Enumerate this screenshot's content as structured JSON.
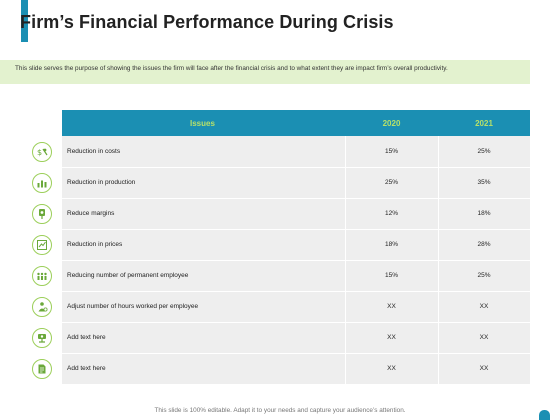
{
  "slide": {
    "title": "Firm’s Financial Performance During Crisis",
    "description": "This slide serves the purpose of showing the issues the firm will face after the financial crisis and to what extent they are impact firm’s overall productivity.",
    "footer": "This slide is 100% editable. Adapt it to your needs and capture your audience’s attention."
  },
  "colors": {
    "accent": "#1b8fb3",
    "header_text": "#b6e06a",
    "description_bg": "#e3f2cf",
    "icon_border": "#9ccf5a",
    "table_bg": "#eeeeee"
  },
  "table": {
    "headers": [
      "Issues",
      "2020",
      "2021"
    ],
    "rows": [
      {
        "issue": "Reduction in costs",
        "v2020": "15%",
        "v2021": "25%",
        "icon": "money-reduce-icon"
      },
      {
        "issue": "Reduction in production",
        "v2020": "25%",
        "v2021": "35%",
        "icon": "production-chart-icon"
      },
      {
        "issue": "Reduce margins",
        "v2020": "12%",
        "v2021": "18%",
        "icon": "margin-down-icon"
      },
      {
        "issue": "Reduction in prices",
        "v2020": "18%",
        "v2021": "28%",
        "icon": "price-chart-icon"
      },
      {
        "issue": "Reducing number of permanent employee",
        "v2020": "15%",
        "v2021": "25%",
        "icon": "employees-icon"
      },
      {
        "issue": "Adjust number of hours worked per employee",
        "v2020": "XX",
        "v2021": "XX",
        "icon": "employee-hours-icon"
      },
      {
        "issue": "Add text here",
        "v2020": "XX",
        "v2021": "XX",
        "icon": "gear-network-icon"
      },
      {
        "issue": "Add text here",
        "v2020": "XX",
        "v2021": "XX",
        "icon": "document-icon"
      }
    ]
  }
}
